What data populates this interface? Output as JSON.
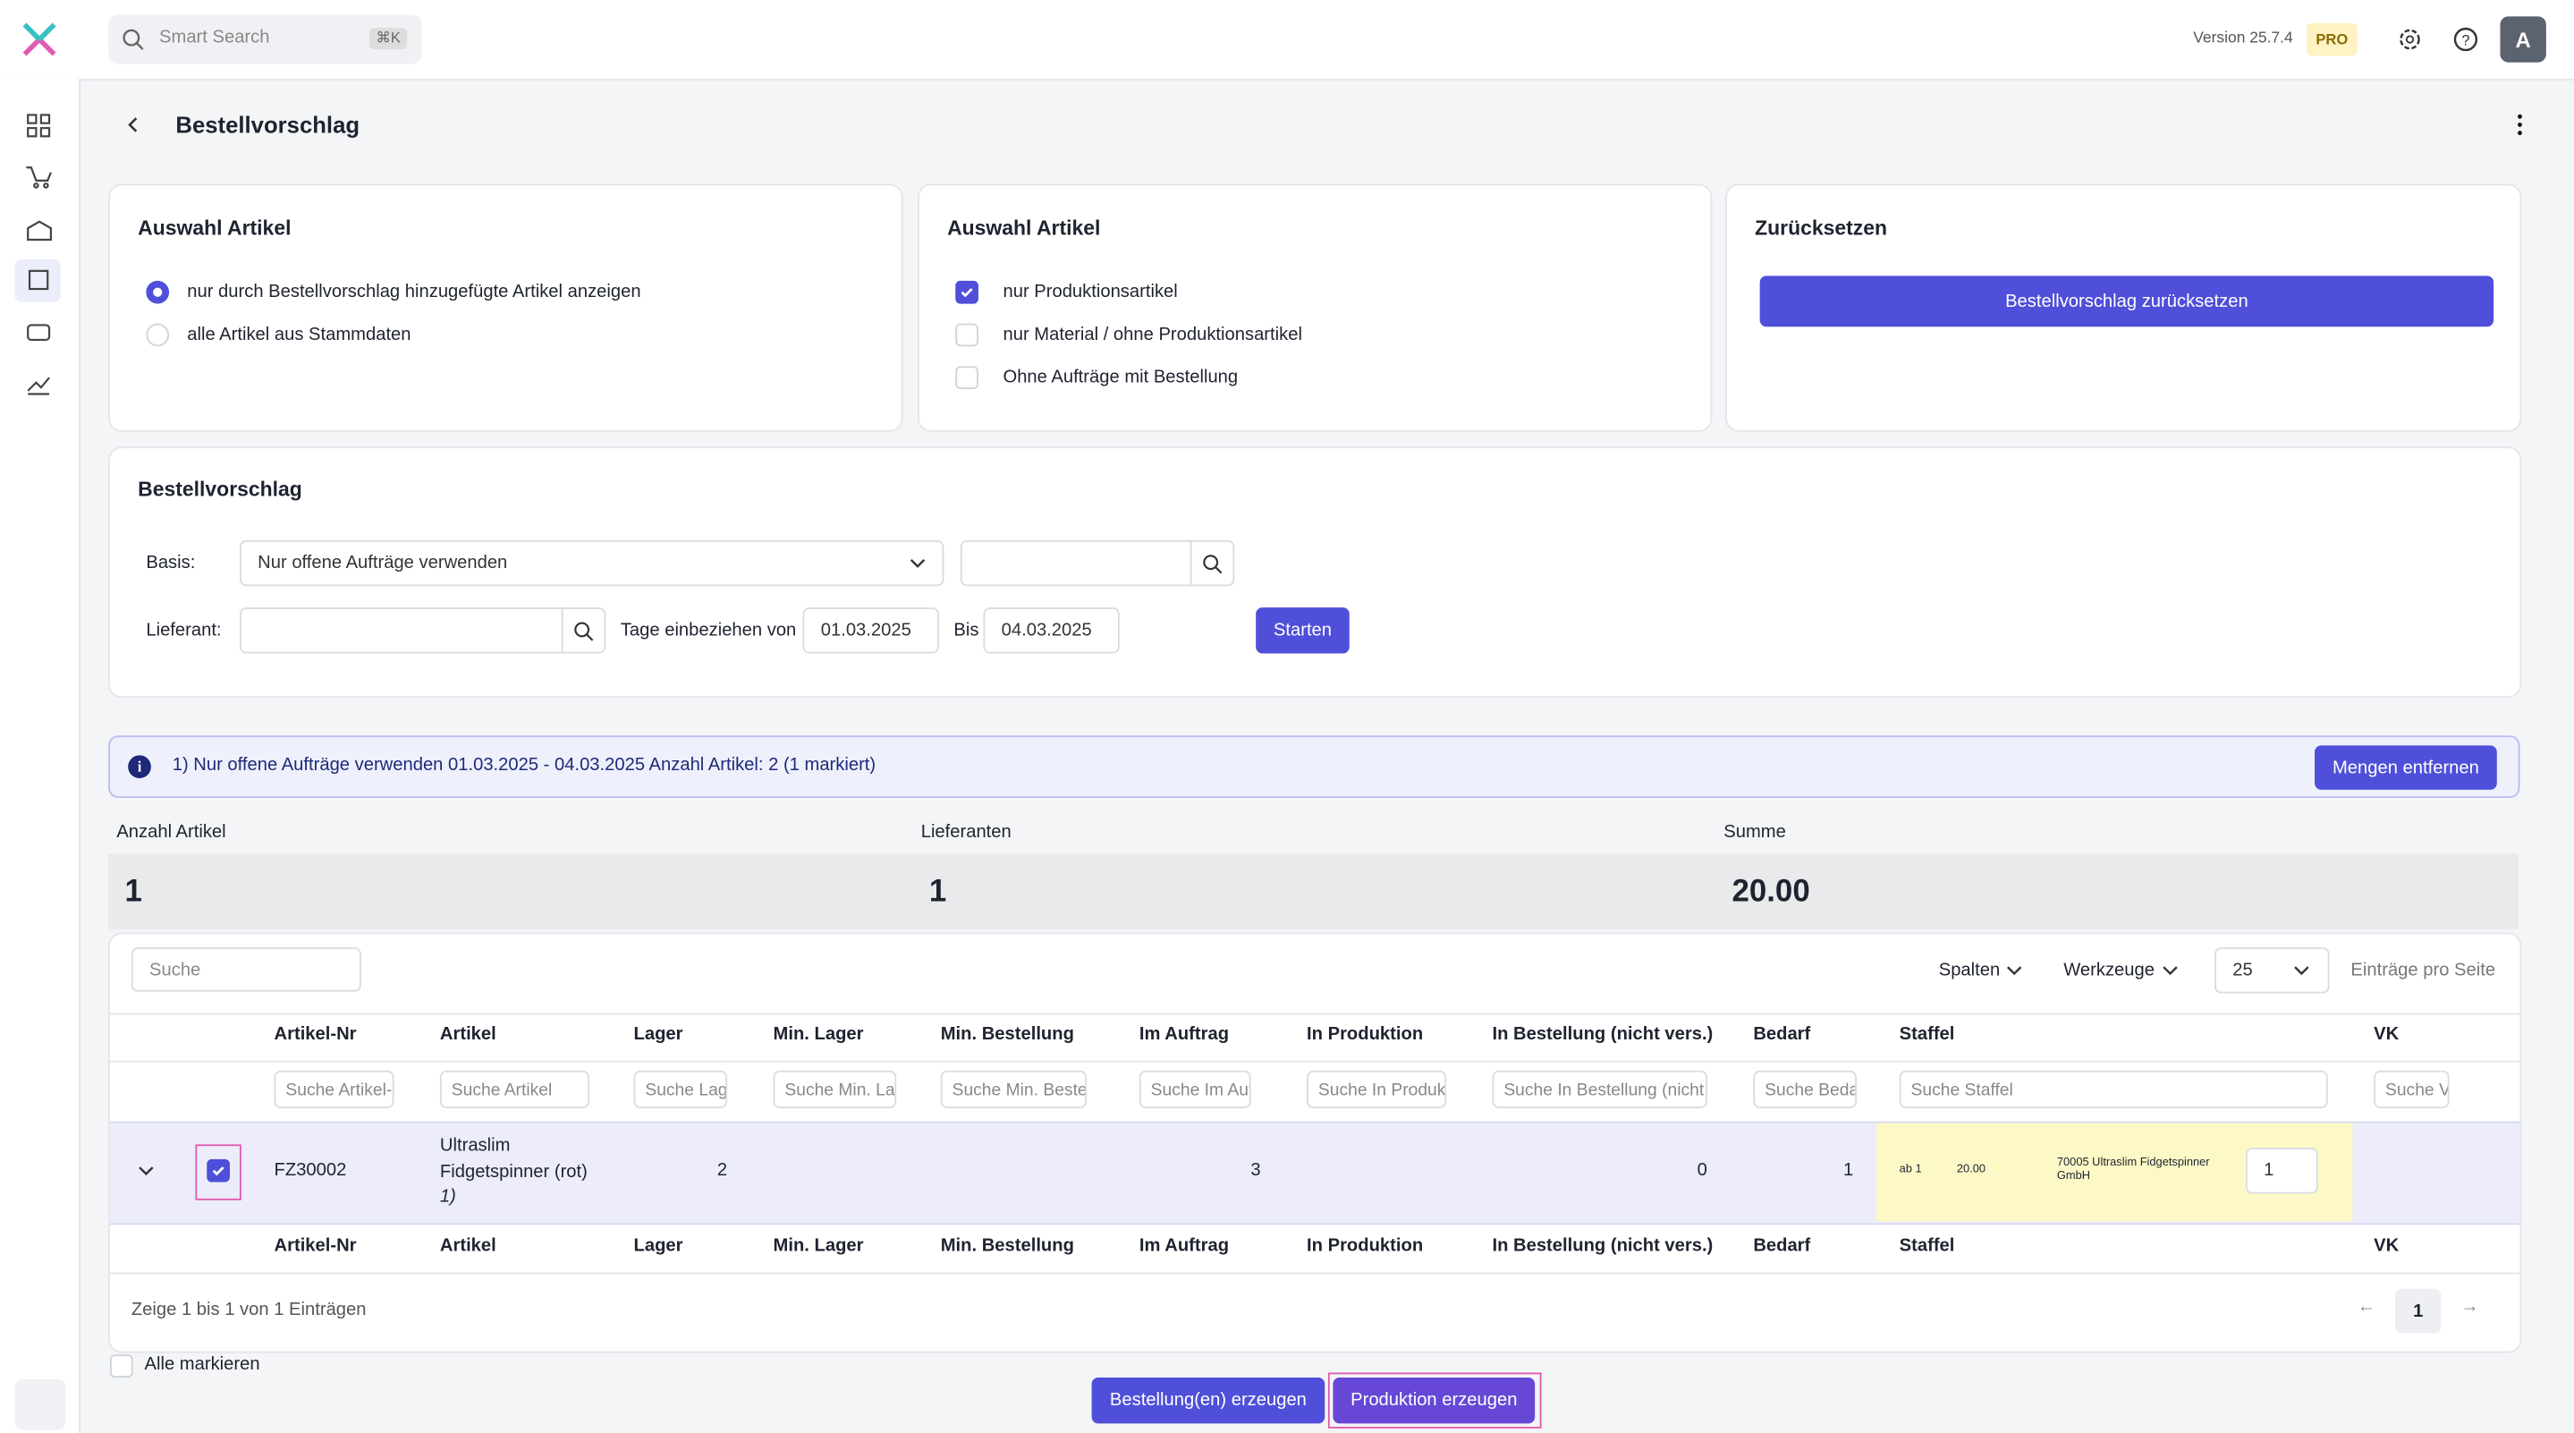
{
  "topbar": {
    "search": "Smart Search",
    "shortcut": "⌘K",
    "version": "Version 25.7.4",
    "badge": "PRO",
    "avatar": "A"
  },
  "page": {
    "title": "Bestellvorschlag"
  },
  "cards": [
    {
      "title": "Auswahl Artikel",
      "options": [
        "nur durch Bestellvorschlag hinzugefügte Artikel anzeigen",
        "alle Artikel aus Stammdaten"
      ]
    },
    {
      "title": "Auswahl Artikel",
      "options": [
        "nur Produktionsartikel",
        "nur Material / ohne Produktionsartikel",
        "Ohne Aufträge mit Bestellung"
      ]
    },
    {
      "title": "Zurücksetzen",
      "button": "Bestellvorschlag zurücksetzen"
    }
  ],
  "form": {
    "title": "Bestellvorschlag",
    "basis_label": "Basis:",
    "basis_value": "Nur offene Aufträge verwenden",
    "supplier_label": "Lieferant:",
    "days_label": "Tage einbeziehen von",
    "from": "01.03.2025",
    "to_label": "Bis",
    "to": "04.03.2025",
    "start": "Starten"
  },
  "info": {
    "text": "1) Nur offene Aufträge verwenden 01.03.2025 - 04.03.2025 Anzahl Artikel: 2 (1 markiert)",
    "button": "Mengen entfernen"
  },
  "stats": [
    {
      "label": "Anzahl Artikel",
      "value": "1"
    },
    {
      "label": "Lieferanten",
      "value": "1"
    },
    {
      "label": "Summe",
      "value": "20.00"
    }
  ],
  "toolbar": {
    "search": "Suche",
    "columns": "Spalten",
    "tools": "Werkzeuge",
    "page_size": "25",
    "page_size_label": "Einträge pro Seite"
  },
  "table": {
    "columns": [
      "Artikel-Nr",
      "Artikel",
      "Lager",
      "Min. Lager",
      "Min. Bestellung",
      "Im Auftrag",
      "In Produktion",
      "In Bestellung (nicht vers.)",
      "Bedarf",
      "Staffel",
      "VK"
    ],
    "filters": [
      "Suche Artikel-Nr",
      "Suche Artikel",
      "Suche Lager",
      "Suche Min. Lager",
      "Suche Min. Bestellung",
      "Suche Im Auftrag",
      "Suche In Produktion",
      "Suche In Bestellung (nicht vers.)",
      "Suche Bedarf",
      "Suche Staffel",
      "Suche VK"
    ],
    "row": {
      "nr": "FZ30002",
      "article": "Ultraslim Fidgetspinner (rot)",
      "note": "1)",
      "lager": "2",
      "im_auftrag": "3",
      "in_bestellung": "0",
      "bedarf": "1",
      "staffel_from": "ab 1",
      "staffel_price": "20.00",
      "staffel_supplier": "70005 Ultraslim Fidgetspinner GmbH",
      "qty": "1"
    }
  },
  "footer": {
    "info": "Zeige 1 bis 1 von 1 Einträgen",
    "page": "1",
    "select_all": "Alle markieren",
    "order_button": "Bestellung(en) erzeugen",
    "production_button": "Produktion erzeugen"
  }
}
